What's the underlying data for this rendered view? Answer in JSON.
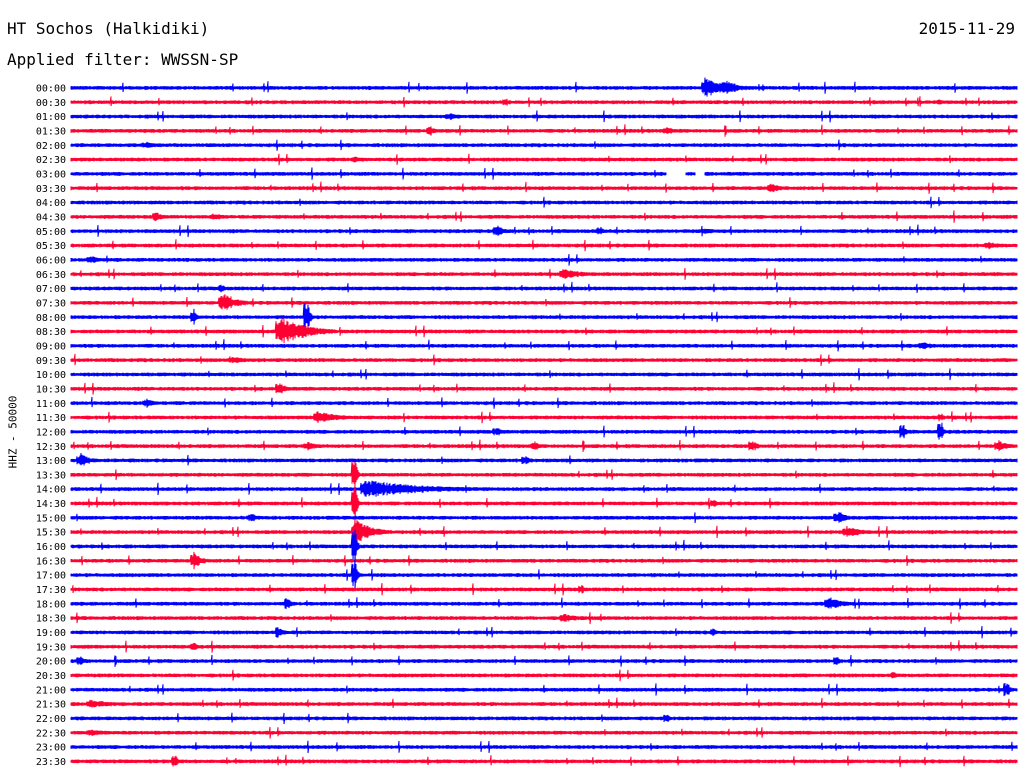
{
  "header": {
    "station": "HT Sochos (Halkidiki)",
    "date": "2015-11-29",
    "filter_prefix": "Applied filter:",
    "filter_name": "WWSSN-SP"
  },
  "axis": {
    "channel_label": "HHZ - 50000"
  },
  "colors": {
    "even_row": "#0000ff",
    "odd_row": "#ff0033",
    "background": "#ffffff"
  },
  "chart_data": {
    "type": "seismogram-helicorder",
    "title": "HT Sochos (Halkidiki)",
    "date": "2015-11-29",
    "filter": "WWSSN-SP",
    "ylabel": "HHZ - 50000",
    "rows": [
      {
        "label": "00:00",
        "events": [
          {
            "pos": 0.67,
            "amp": 12,
            "dur": 0.03
          },
          {
            "pos": 0.69,
            "amp": 9,
            "dur": 0.03
          }
        ]
      },
      {
        "label": "00:30",
        "events": [
          {
            "pos": 0.46,
            "amp": 4,
            "dur": 0.005
          },
          {
            "pos": 0.92,
            "amp": 3,
            "dur": 0.005
          }
        ]
      },
      {
        "label": "01:00",
        "events": [
          {
            "pos": 0.4,
            "amp": 3,
            "dur": 0.02
          }
        ]
      },
      {
        "label": "01:30",
        "events": [
          {
            "pos": 0.38,
            "amp": 5,
            "dur": 0.01
          },
          {
            "pos": 0.63,
            "amp": 3,
            "dur": 0.02
          }
        ]
      },
      {
        "label": "02:00",
        "events": [
          {
            "pos": 0.08,
            "amp": 3,
            "dur": 0.02
          }
        ]
      },
      {
        "label": "02:30",
        "events": [
          {
            "pos": 0.3,
            "amp": 3,
            "dur": 0.01
          }
        ]
      },
      {
        "label": "03:00",
        "events": [],
        "gaps": [
          [
            0.63,
            0.65
          ],
          [
            0.66,
            0.67
          ]
        ]
      },
      {
        "label": "03:30",
        "events": [
          {
            "pos": 0.74,
            "amp": 6,
            "dur": 0.015
          }
        ]
      },
      {
        "label": "04:00",
        "events": []
      },
      {
        "label": "04:30",
        "events": [
          {
            "pos": 0.09,
            "amp": 6,
            "dur": 0.01
          },
          {
            "pos": 0.15,
            "amp": 3,
            "dur": 0.03
          }
        ]
      },
      {
        "label": "05:00",
        "events": [
          {
            "pos": 0.45,
            "amp": 6,
            "dur": 0.015
          },
          {
            "pos": 0.56,
            "amp": 5,
            "dur": 0.005
          },
          {
            "pos": 0.67,
            "amp": 3,
            "dur": 0.02
          }
        ]
      },
      {
        "label": "05:30",
        "events": [
          {
            "pos": 0.97,
            "amp": 3,
            "dur": 0.03
          }
        ]
      },
      {
        "label": "06:00",
        "events": [
          {
            "pos": 0.02,
            "amp": 4,
            "dur": 0.02
          }
        ]
      },
      {
        "label": "06:30",
        "events": [
          {
            "pos": 0.52,
            "amp": 5,
            "dur": 0.04
          }
        ]
      },
      {
        "label": "07:00",
        "events": [
          {
            "pos": 0.16,
            "amp": 5,
            "dur": 0.005
          }
        ]
      },
      {
        "label": "07:30",
        "events": [
          {
            "pos": 0.16,
            "amp": 10,
            "dur": 0.03
          }
        ]
      },
      {
        "label": "08:00",
        "events": [
          {
            "pos": 0.13,
            "amp": 8,
            "dur": 0.005
          },
          {
            "pos": 0.25,
            "amp": 22,
            "dur": 0.005
          }
        ]
      },
      {
        "label": "08:30",
        "events": [
          {
            "pos": 0.22,
            "amp": 16,
            "dur": 0.06
          }
        ]
      },
      {
        "label": "09:00",
        "events": [
          {
            "pos": 0.9,
            "amp": 4,
            "dur": 0.02
          }
        ]
      },
      {
        "label": "09:30",
        "events": [
          {
            "pos": 0.17,
            "amp": 3,
            "dur": 0.03
          }
        ]
      },
      {
        "label": "10:00",
        "events": []
      },
      {
        "label": "10:30",
        "events": [
          {
            "pos": 0.22,
            "amp": 7,
            "dur": 0.015
          }
        ]
      },
      {
        "label": "11:00",
        "events": [
          {
            "pos": 0.08,
            "amp": 4,
            "dur": 0.02
          }
        ]
      },
      {
        "label": "11:30",
        "events": [
          {
            "pos": 0.26,
            "amp": 7,
            "dur": 0.04
          },
          {
            "pos": 0.92,
            "amp": 5,
            "dur": 0.005
          }
        ]
      },
      {
        "label": "12:00",
        "events": [
          {
            "pos": 0.45,
            "amp": 5,
            "dur": 0.01
          },
          {
            "pos": 0.88,
            "amp": 10,
            "dur": 0.005
          },
          {
            "pos": 0.92,
            "amp": 12,
            "dur": 0.005
          }
        ]
      },
      {
        "label": "12:30",
        "events": [
          {
            "pos": 0.25,
            "amp": 4,
            "dur": 0.02
          },
          {
            "pos": 0.49,
            "amp": 5,
            "dur": 0.01
          },
          {
            "pos": 0.72,
            "amp": 7,
            "dur": 0.01
          },
          {
            "pos": 0.98,
            "amp": 6,
            "dur": 0.02
          }
        ]
      },
      {
        "label": "13:00",
        "events": [
          {
            "pos": 0.01,
            "amp": 7,
            "dur": 0.02
          },
          {
            "pos": 0.48,
            "amp": 5,
            "dur": 0.01
          }
        ]
      },
      {
        "label": "13:30",
        "events": [
          {
            "pos": 0.3,
            "amp": 22,
            "dur": 0.005
          }
        ]
      },
      {
        "label": "14:00",
        "events": [
          {
            "pos": 0.31,
            "amp": 9,
            "dur": 0.13
          }
        ]
      },
      {
        "label": "14:30",
        "events": [
          {
            "pos": 0.3,
            "amp": 26,
            "dur": 0.005
          },
          {
            "pos": 0.68,
            "amp": 4,
            "dur": 0.005
          }
        ]
      },
      {
        "label": "15:00",
        "events": [
          {
            "pos": 0.19,
            "amp": 4,
            "dur": 0.02
          },
          {
            "pos": 0.81,
            "amp": 6,
            "dur": 0.02
          }
        ]
      },
      {
        "label": "15:30",
        "events": [
          {
            "pos": 0.3,
            "amp": 14,
            "dur": 0.04
          },
          {
            "pos": 0.82,
            "amp": 6,
            "dur": 0.03
          }
        ]
      },
      {
        "label": "16:00",
        "events": [
          {
            "pos": 0.3,
            "amp": 26,
            "dur": 0.005
          }
        ]
      },
      {
        "label": "16:30",
        "events": [
          {
            "pos": 0.13,
            "amp": 9,
            "dur": 0.015
          }
        ]
      },
      {
        "label": "17:00",
        "events": [
          {
            "pos": 0.3,
            "amp": 22,
            "dur": 0.005
          }
        ]
      },
      {
        "label": "17:30",
        "events": [
          {
            "pos": 0.54,
            "amp": 5,
            "dur": 0.005
          }
        ]
      },
      {
        "label": "18:00",
        "events": [
          {
            "pos": 0.23,
            "amp": 8,
            "dur": 0.005
          },
          {
            "pos": 0.8,
            "amp": 7,
            "dur": 0.03
          }
        ]
      },
      {
        "label": "18:30",
        "events": [
          {
            "pos": 0.52,
            "amp": 4,
            "dur": 0.03
          }
        ]
      },
      {
        "label": "19:00",
        "events": [
          {
            "pos": 0.22,
            "amp": 7,
            "dur": 0.01
          },
          {
            "pos": 0.68,
            "amp": 5,
            "dur": 0.005
          }
        ]
      },
      {
        "label": "19:30",
        "events": [
          {
            "pos": 0.13,
            "amp": 4,
            "dur": 0.01
          }
        ]
      },
      {
        "label": "20:00",
        "events": [
          {
            "pos": 0.01,
            "amp": 5,
            "dur": 0.01
          },
          {
            "pos": 0.81,
            "amp": 5,
            "dur": 0.005
          }
        ]
      },
      {
        "label": "20:30",
        "events": [
          {
            "pos": 0.87,
            "amp": 4,
            "dur": 0.005
          }
        ]
      },
      {
        "label": "21:00",
        "events": [
          {
            "pos": 0.99,
            "amp": 10,
            "dur": 0.005
          }
        ]
      },
      {
        "label": "21:30",
        "events": [
          {
            "pos": 0.02,
            "amp": 4,
            "dur": 0.05
          }
        ]
      },
      {
        "label": "22:00",
        "events": [
          {
            "pos": 0.63,
            "amp": 5,
            "dur": 0.005
          }
        ]
      },
      {
        "label": "22:30",
        "events": [
          {
            "pos": 0.02,
            "amp": 3,
            "dur": 0.04
          }
        ]
      },
      {
        "label": "23:00",
        "events": []
      },
      {
        "label": "23:30",
        "events": [
          {
            "pos": 0.11,
            "amp": 9,
            "dur": 0.005
          }
        ]
      }
    ]
  }
}
